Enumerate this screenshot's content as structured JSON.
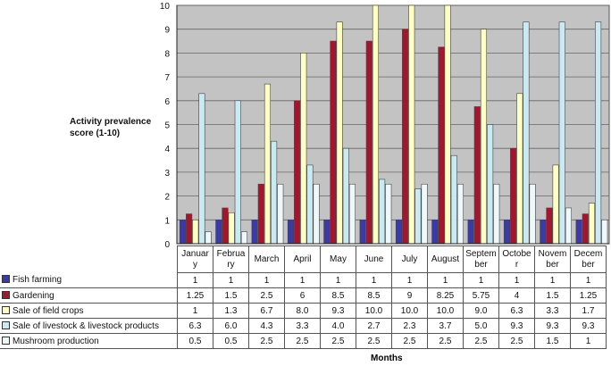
{
  "chart_data": {
    "type": "bar",
    "title": "",
    "ylabel": "Activity prevalence score (1-10)",
    "xlabel": "Months",
    "ylim": [
      0,
      10
    ],
    "yticks": [
      "0",
      "1",
      "2",
      "3",
      "4",
      "5",
      "6",
      "7",
      "8",
      "9",
      "10"
    ],
    "grid": true,
    "legend": "table-left",
    "categories": [
      "January",
      "February",
      "March",
      "April",
      "May",
      "June",
      "July",
      "August",
      "September",
      "October",
      "November",
      "December"
    ],
    "category_labels": [
      "Januar y",
      "Februa ry",
      "March",
      "April",
      "May",
      "June",
      "July",
      "August",
      "Septem ber",
      "Octobe r",
      "Novem ber",
      "Decem ber"
    ],
    "series": [
      {
        "name": "Fish farming",
        "color": "#3b3ba8",
        "values": [
          "1",
          "1",
          "1",
          "1",
          "1",
          "1",
          "1",
          "1",
          "1",
          "1",
          "1",
          "1"
        ]
      },
      {
        "name": "Gardening",
        "color": "#a3162e",
        "values": [
          "1.25",
          "1.5",
          "2.5",
          "6",
          "8.5",
          "8.5",
          "9",
          "8.25",
          "5.75",
          "4",
          "1.5",
          "1.25"
        ]
      },
      {
        "name": "Sale of field crops",
        "color": "#ffffc4",
        "values": [
          "1",
          "1.3",
          "6.7",
          "8.0",
          "9.3",
          "10.0",
          "10.0",
          "10.0",
          "9.0",
          "6.3",
          "3.3",
          "1.7"
        ]
      },
      {
        "name": "Sale of livestock & livestock products",
        "color": "#c9eaf3",
        "values": [
          "6.3",
          "6.0",
          "4.3",
          "3.3",
          "4.0",
          "2.7",
          "2.3",
          "3.7",
          "5.0",
          "9.3",
          "9.3",
          "9.3"
        ]
      },
      {
        "name": "Mushroom production",
        "color": "#eef8fb",
        "values": [
          "0.5",
          "0.5",
          "2.5",
          "2.5",
          "2.5",
          "2.5",
          "2.5",
          "2.5",
          "2.5",
          "2.5",
          "1.5",
          "1"
        ]
      }
    ]
  }
}
